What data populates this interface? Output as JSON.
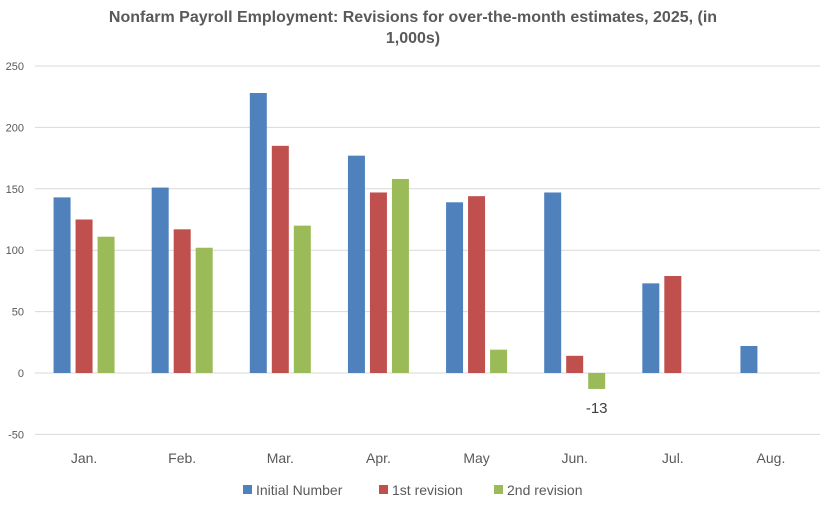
{
  "chart_data": {
    "type": "bar",
    "title_lines": [
      "Nonfarm Payroll Employment: Revisions for over-the-month estimates, 2025, (in",
      "1,000s)"
    ],
    "categories": [
      "Jan.",
      "Feb.",
      "Mar.",
      "Apr.",
      "May",
      "Jun.",
      "Jul.",
      "Aug."
    ],
    "series": [
      {
        "name": "Initial Number",
        "color": "#4F81BD",
        "values": [
          143,
          151,
          228,
          177,
          139,
          147,
          73,
          22
        ]
      },
      {
        "name": "1st revision",
        "color": "#C0504D",
        "values": [
          125,
          117,
          185,
          147,
          144,
          14,
          79,
          null
        ]
      },
      {
        "name": "2nd revision",
        "color": "#9BBB59",
        "values": [
          111,
          102,
          120,
          158,
          19,
          -13,
          null,
          null
        ]
      }
    ],
    "yticks": [
      -50,
      0,
      50,
      100,
      150,
      200,
      250
    ],
    "ylim": [
      -50,
      250
    ],
    "grid": true,
    "legend": "bottom",
    "data_labels": [
      {
        "series": 2,
        "category": 5,
        "text": "-13"
      }
    ]
  }
}
